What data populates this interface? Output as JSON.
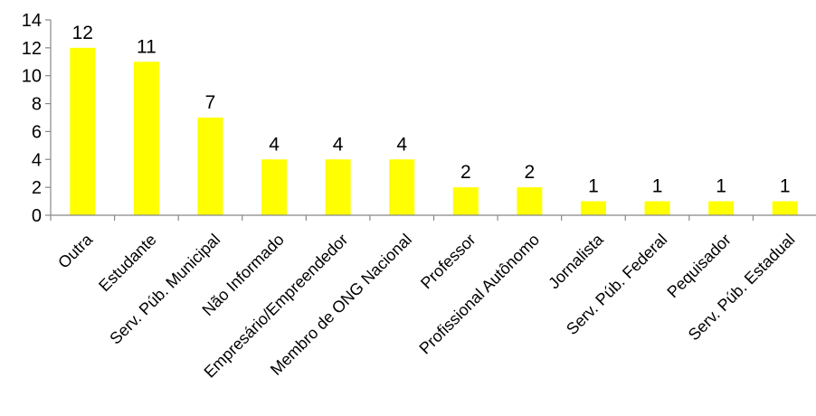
{
  "chart_data": {
    "type": "bar",
    "title": "",
    "xlabel": "",
    "ylabel": "",
    "ylim": [
      0,
      14
    ],
    "yticks": [
      0,
      2,
      4,
      6,
      8,
      10,
      12,
      14
    ],
    "grid": false,
    "legend": "none",
    "bar_color": "#ffff00",
    "categories": [
      "Outra",
      "Estudante",
      "Serv. Púb. Municipal",
      "Não Informado",
      "Empresário/Empreendedor",
      "Membro de ONG Nacional",
      "Professor",
      "Profissional Autônomo",
      "Jornalista",
      "Serv. Púb. Federal",
      "Pequisador",
      "Serv. Púb. Estadual"
    ],
    "values": [
      12,
      11,
      7,
      4,
      4,
      4,
      2,
      2,
      1,
      1,
      1,
      1
    ],
    "data_labels": [
      "12",
      "11",
      "7",
      "4",
      "4",
      "4",
      "2",
      "2",
      "1",
      "1",
      "1",
      "1"
    ]
  }
}
